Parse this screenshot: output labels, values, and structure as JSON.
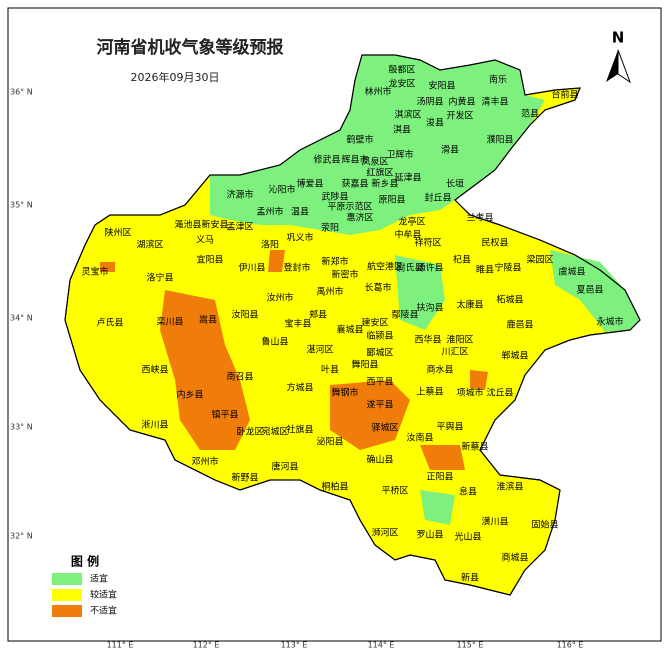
{
  "header": {
    "title": "河南省机收气象等级预报",
    "date": "2026年09月30日",
    "north": "N"
  },
  "legend": {
    "title": "图 例",
    "items": [
      {
        "label": "适宜",
        "color": "#7ef07e"
      },
      {
        "label": "较适宜",
        "color": "#ffff00"
      },
      {
        "label": "不适宜",
        "color": "#f07d0a"
      }
    ]
  },
  "latitude_labels": [
    "36° N",
    "35° N",
    "34° N",
    "33° N",
    "32° N"
  ],
  "longitude_labels": [
    "111° E",
    "112° E",
    "113° E",
    "114° E",
    "115° E",
    "116° E"
  ],
  "places": [
    "殷都区",
    "龙安区",
    "安阳县",
    "林州市",
    "南乐",
    "清丰县",
    "汤阴县",
    "内黄县",
    "淇滨区",
    "开发区",
    "范县",
    "台前县",
    "浚县",
    "淇县",
    "鹤壁市",
    "滑县",
    "濮阳县",
    "卫辉市",
    "辉县市",
    "凤泉区",
    "红旗区",
    "延津县",
    "修武县",
    "获嘉县",
    "新乡县",
    "长垣",
    "沁阳市",
    "博爱县",
    "济源市",
    "封丘县",
    "武陟县",
    "温县",
    "孟州市",
    "原阳县",
    "平原示范区",
    "兰考县",
    "渑池县",
    "新安县",
    "孟津区",
    "巩义市",
    "荥阳",
    "惠济区",
    "龙亭区",
    "中牟县",
    "陕州区",
    "义马",
    "洛阳",
    "民权县",
    "湖滨区",
    "祥符区",
    "梁园区",
    "宜阳县",
    "伊川县",
    "登封市",
    "新郑市",
    "尉氏县",
    "杞县",
    "睢县",
    "宁陵县",
    "灵宝市",
    "洛宁县",
    "新密市",
    "航空港区",
    "通许县",
    "柘城县",
    "夏邑县",
    "虞城县",
    "汝州市",
    "禹州市",
    "长葛市",
    "扶沟县",
    "太康县",
    "卢氏县",
    "栾川县",
    "嵩县",
    "汝阳县",
    "郏县",
    "鄢陵县",
    "鹿邑县",
    "永城市",
    "宝丰县",
    "襄城县",
    "建安区",
    "临颍县",
    "西华县",
    "淮阳区",
    "鲁山县",
    "湛河区",
    "郾城区",
    "川汇区",
    "郸城县",
    "西峡县",
    "叶县",
    "舞阳县",
    "商水县",
    "南召县",
    "方城县",
    "舞钢市",
    "西平县",
    "项城市",
    "沈丘县",
    "内乡县",
    "上蔡县",
    "镇平县",
    "遂平县",
    "淅川县",
    "卧龙区",
    "宛城区",
    "社旗县",
    "驿城区",
    "平舆县",
    "汝南县",
    "新蔡县",
    "泌阳县",
    "确山县",
    "邓州市",
    "唐河县",
    "正阳县",
    "新野县",
    "桐柏县",
    "平桥区",
    "息县",
    "淮滨县",
    "浉河区",
    "罗山县",
    "潢川县",
    "固始县",
    "光山县",
    "商城县",
    "新县"
  ]
}
